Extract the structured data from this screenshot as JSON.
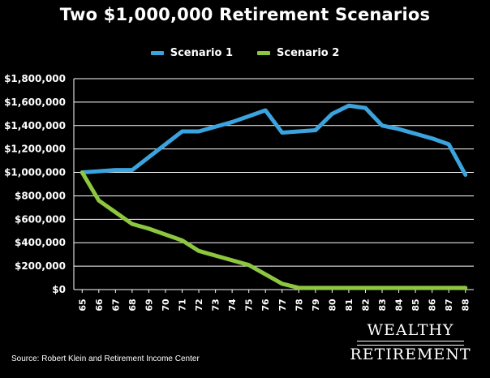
{
  "chart_data": {
    "type": "line",
    "title": "Two $1,000,000 Retirement Scenarios",
    "x": [
      65,
      66,
      67,
      68,
      69,
      70,
      71,
      72,
      73,
      74,
      75,
      76,
      77,
      78,
      79,
      80,
      81,
      82,
      83,
      84,
      85,
      86,
      87,
      88
    ],
    "series": [
      {
        "name": "Scenario 1",
        "color": "#3ba3dd",
        "values": [
          1000000,
          1010000,
          1020000,
          1020000,
          1130000,
          1240000,
          1350000,
          1350000,
          1390000,
          1430000,
          1480000,
          1530000,
          1340000,
          1350000,
          1360000,
          1500000,
          1570000,
          1550000,
          1400000,
          1370000,
          1330000,
          1290000,
          1240000,
          980000
        ]
      },
      {
        "name": "Scenario 2",
        "color": "#8dc63f",
        "values": [
          1000000,
          760000,
          660000,
          560000,
          520000,
          470000,
          420000,
          330000,
          290000,
          250000,
          210000,
          130000,
          50000,
          15000,
          15000,
          15000,
          15000,
          15000,
          15000,
          15000,
          15000,
          15000,
          15000,
          15000
        ]
      }
    ],
    "x_tick_labels": [
      "65",
      "66",
      "67",
      "68",
      "69",
      "70",
      "71",
      "72",
      "73",
      "74",
      "75",
      "76",
      "77",
      "78",
      "79",
      "80",
      "81",
      "82",
      "83",
      "84",
      "85",
      "86",
      "87",
      "88"
    ],
    "y_tick_labels": [
      "$0",
      "$200,000",
      "$400,000",
      "$600,000",
      "$800,000",
      "$1,000,000",
      "$1,200,000",
      "$1,400,000",
      "$1,600,000",
      "$1,800,000"
    ],
    "ylim": [
      0,
      1800000
    ],
    "xlim": [
      65,
      88
    ],
    "grid": true,
    "legend_position": "top-center",
    "background_color": "#000000",
    "grid_color": "#ffffff"
  },
  "source": "Source: Robert Klein and Retirement Income Center",
  "logo": {
    "line1": "WEALTHY",
    "line2": "RETIREMENT"
  }
}
